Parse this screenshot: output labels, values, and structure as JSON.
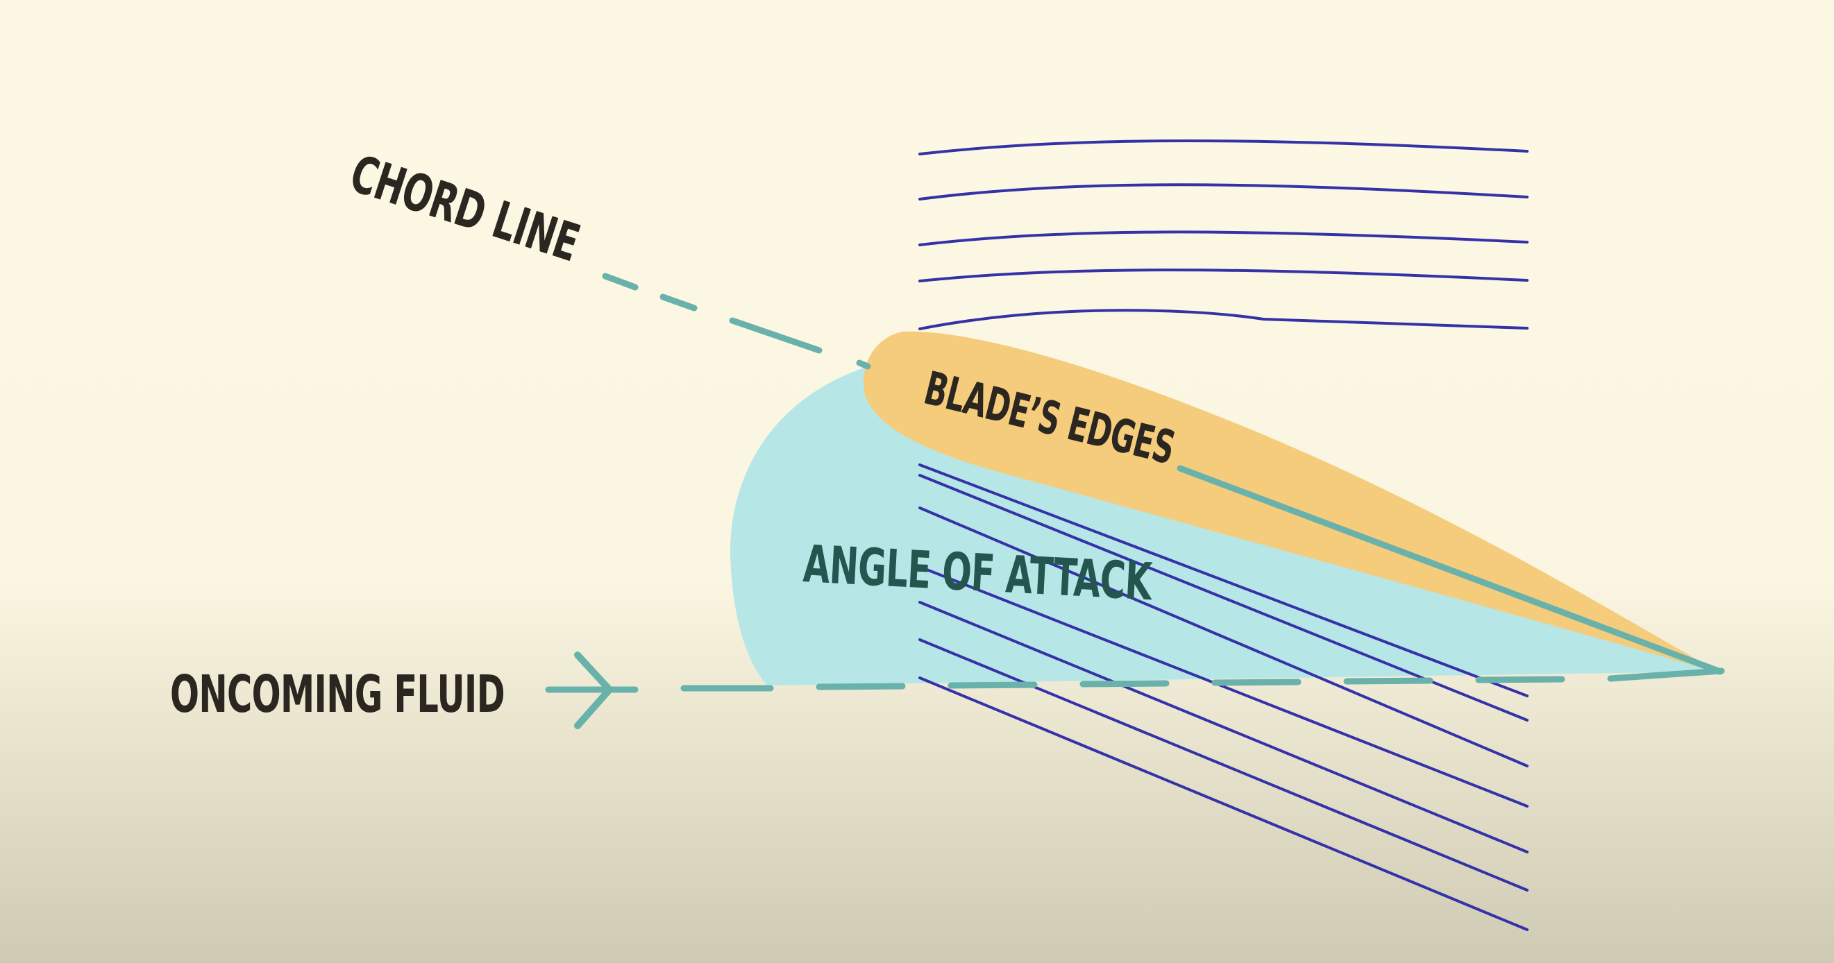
{
  "labels": {
    "chord_line": "CHORD LINE",
    "blades_edges": "BLADE’S EDGES",
    "angle_of_attack": "ANGLE OF ATTACK",
    "oncoming_fluid": "ONCOMING FLUID"
  },
  "colors": {
    "background_top": "#fcf8e4",
    "background_bottom": "#cfcab3",
    "text_dark": "#2b261f",
    "angle_text": "#24564f",
    "blade_fill": "#f5cc7c",
    "angle_fill": "#b6e6e6",
    "dashed_line": "#69b1ab",
    "stream_lines": "#3532a8"
  },
  "icons": {
    "flow_arrow": "arrowhead-right-icon"
  }
}
